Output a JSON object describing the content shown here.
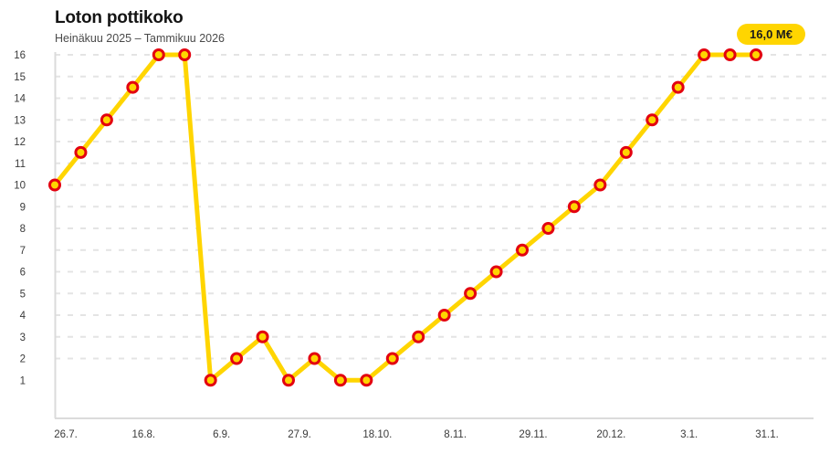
{
  "header": {
    "title": "Loton pottikoko",
    "subtitle": "Heinäkuu 2025 – Tammikuu 2026"
  },
  "badge": {
    "label": "16,0 M€"
  },
  "chart_data": {
    "type": "line",
    "title": "Loton pottikoko",
    "subtitle": "Heinäkuu 2025 – Tammikuu 2026",
    "unit": "M€",
    "values": [
      10,
      11.5,
      13,
      14.5,
      16,
      16,
      1,
      2,
      3,
      1,
      2,
      1,
      1,
      2,
      3,
      4,
      5,
      6,
      7,
      8,
      9,
      10,
      11.5,
      13,
      14.5,
      16,
      16,
      16
    ],
    "x_tick_labels": [
      "26.7.",
      "16.8.",
      "6.9.",
      "27.9.",
      "18.10.",
      "8.11.",
      "29.11.",
      "20.12.",
      "3.1.",
      "31.1."
    ],
    "x_tick_every": 3,
    "y_tick_labels": [
      "1",
      "2",
      "3",
      "4",
      "5",
      "6",
      "7",
      "8",
      "9",
      "10",
      "11",
      "12",
      "13",
      "14",
      "15",
      "16"
    ],
    "y_gridlines": [
      2,
      3,
      4,
      5,
      6,
      7,
      8,
      9,
      10,
      11,
      12,
      13,
      14,
      15,
      16
    ],
    "ylim": [
      1,
      16
    ],
    "grid": "horizontal-dashed",
    "legend": "none",
    "last_value_label": "16,0 M€",
    "colors": {
      "line": "#FFD500",
      "marker_fill": "#FFD500",
      "marker_stroke": "#E3000F",
      "badge_bg": "#FFD500",
      "badge_text": "#1C1C1C",
      "grid": "#E4E4E4",
      "axis": "#DBDBDB",
      "tick_text": "#3A3A3A",
      "title_text": "#141414",
      "subtitle_text": "#4A4A4A"
    }
  }
}
